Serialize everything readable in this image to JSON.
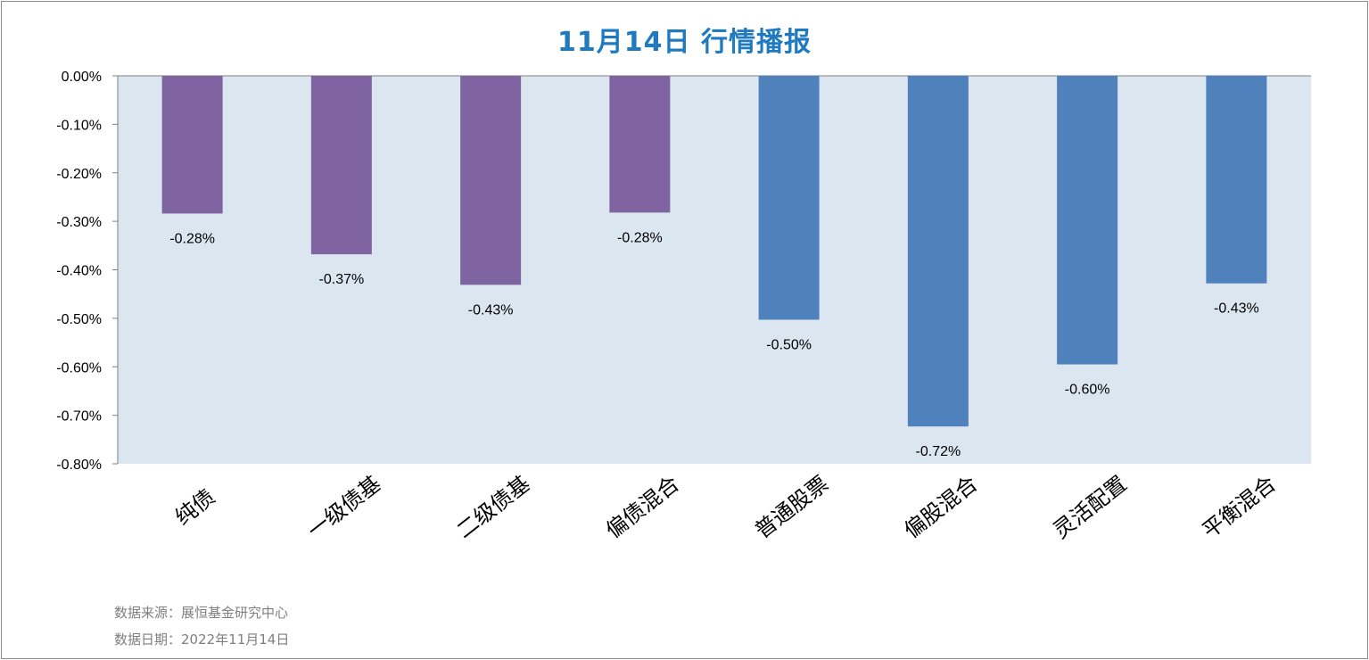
{
  "title": "11月14日  行情播报",
  "footnotes": {
    "source": "数据来源：展恒基金研究中心",
    "date": "数据日期：2022年11月14日"
  },
  "colors": {
    "title": "#1f7ac0",
    "plot_background": "#dce6f1",
    "bond_bar": "#8064a2",
    "equity_bar": "#4f81bd"
  },
  "chart_data": {
    "type": "bar",
    "categories": [
      "纯债",
      "一级债基",
      "二级债基",
      "偏债混合",
      "普通股票",
      "偏股混合",
      "灵活配置",
      "平衡混合"
    ],
    "values": [
      -0.284,
      -0.368,
      -0.431,
      -0.282,
      -0.503,
      -0.723,
      -0.595,
      -0.428
    ],
    "data_labels": [
      "-0.28%",
      "-0.37%",
      "-0.43%",
      "-0.28%",
      "-0.50%",
      "-0.72%",
      "-0.60%",
      "-0.43%"
    ],
    "bar_colors": [
      "#8064a2",
      "#8064a2",
      "#8064a2",
      "#8064a2",
      "#4f81bd",
      "#4f81bd",
      "#4f81bd",
      "#4f81bd"
    ],
    "ylim": [
      -0.8,
      0
    ],
    "yticks": [
      0,
      -0.1,
      -0.2,
      -0.3,
      -0.4,
      -0.5,
      -0.6,
      -0.7,
      -0.8
    ],
    "ytick_labels": [
      "0.00%",
      "-0.10%",
      "-0.20%",
      "-0.30%",
      "-0.40%",
      "-0.50%",
      "-0.60%",
      "-0.70%",
      "-0.80%"
    ],
    "grid": false,
    "legend": "none"
  }
}
